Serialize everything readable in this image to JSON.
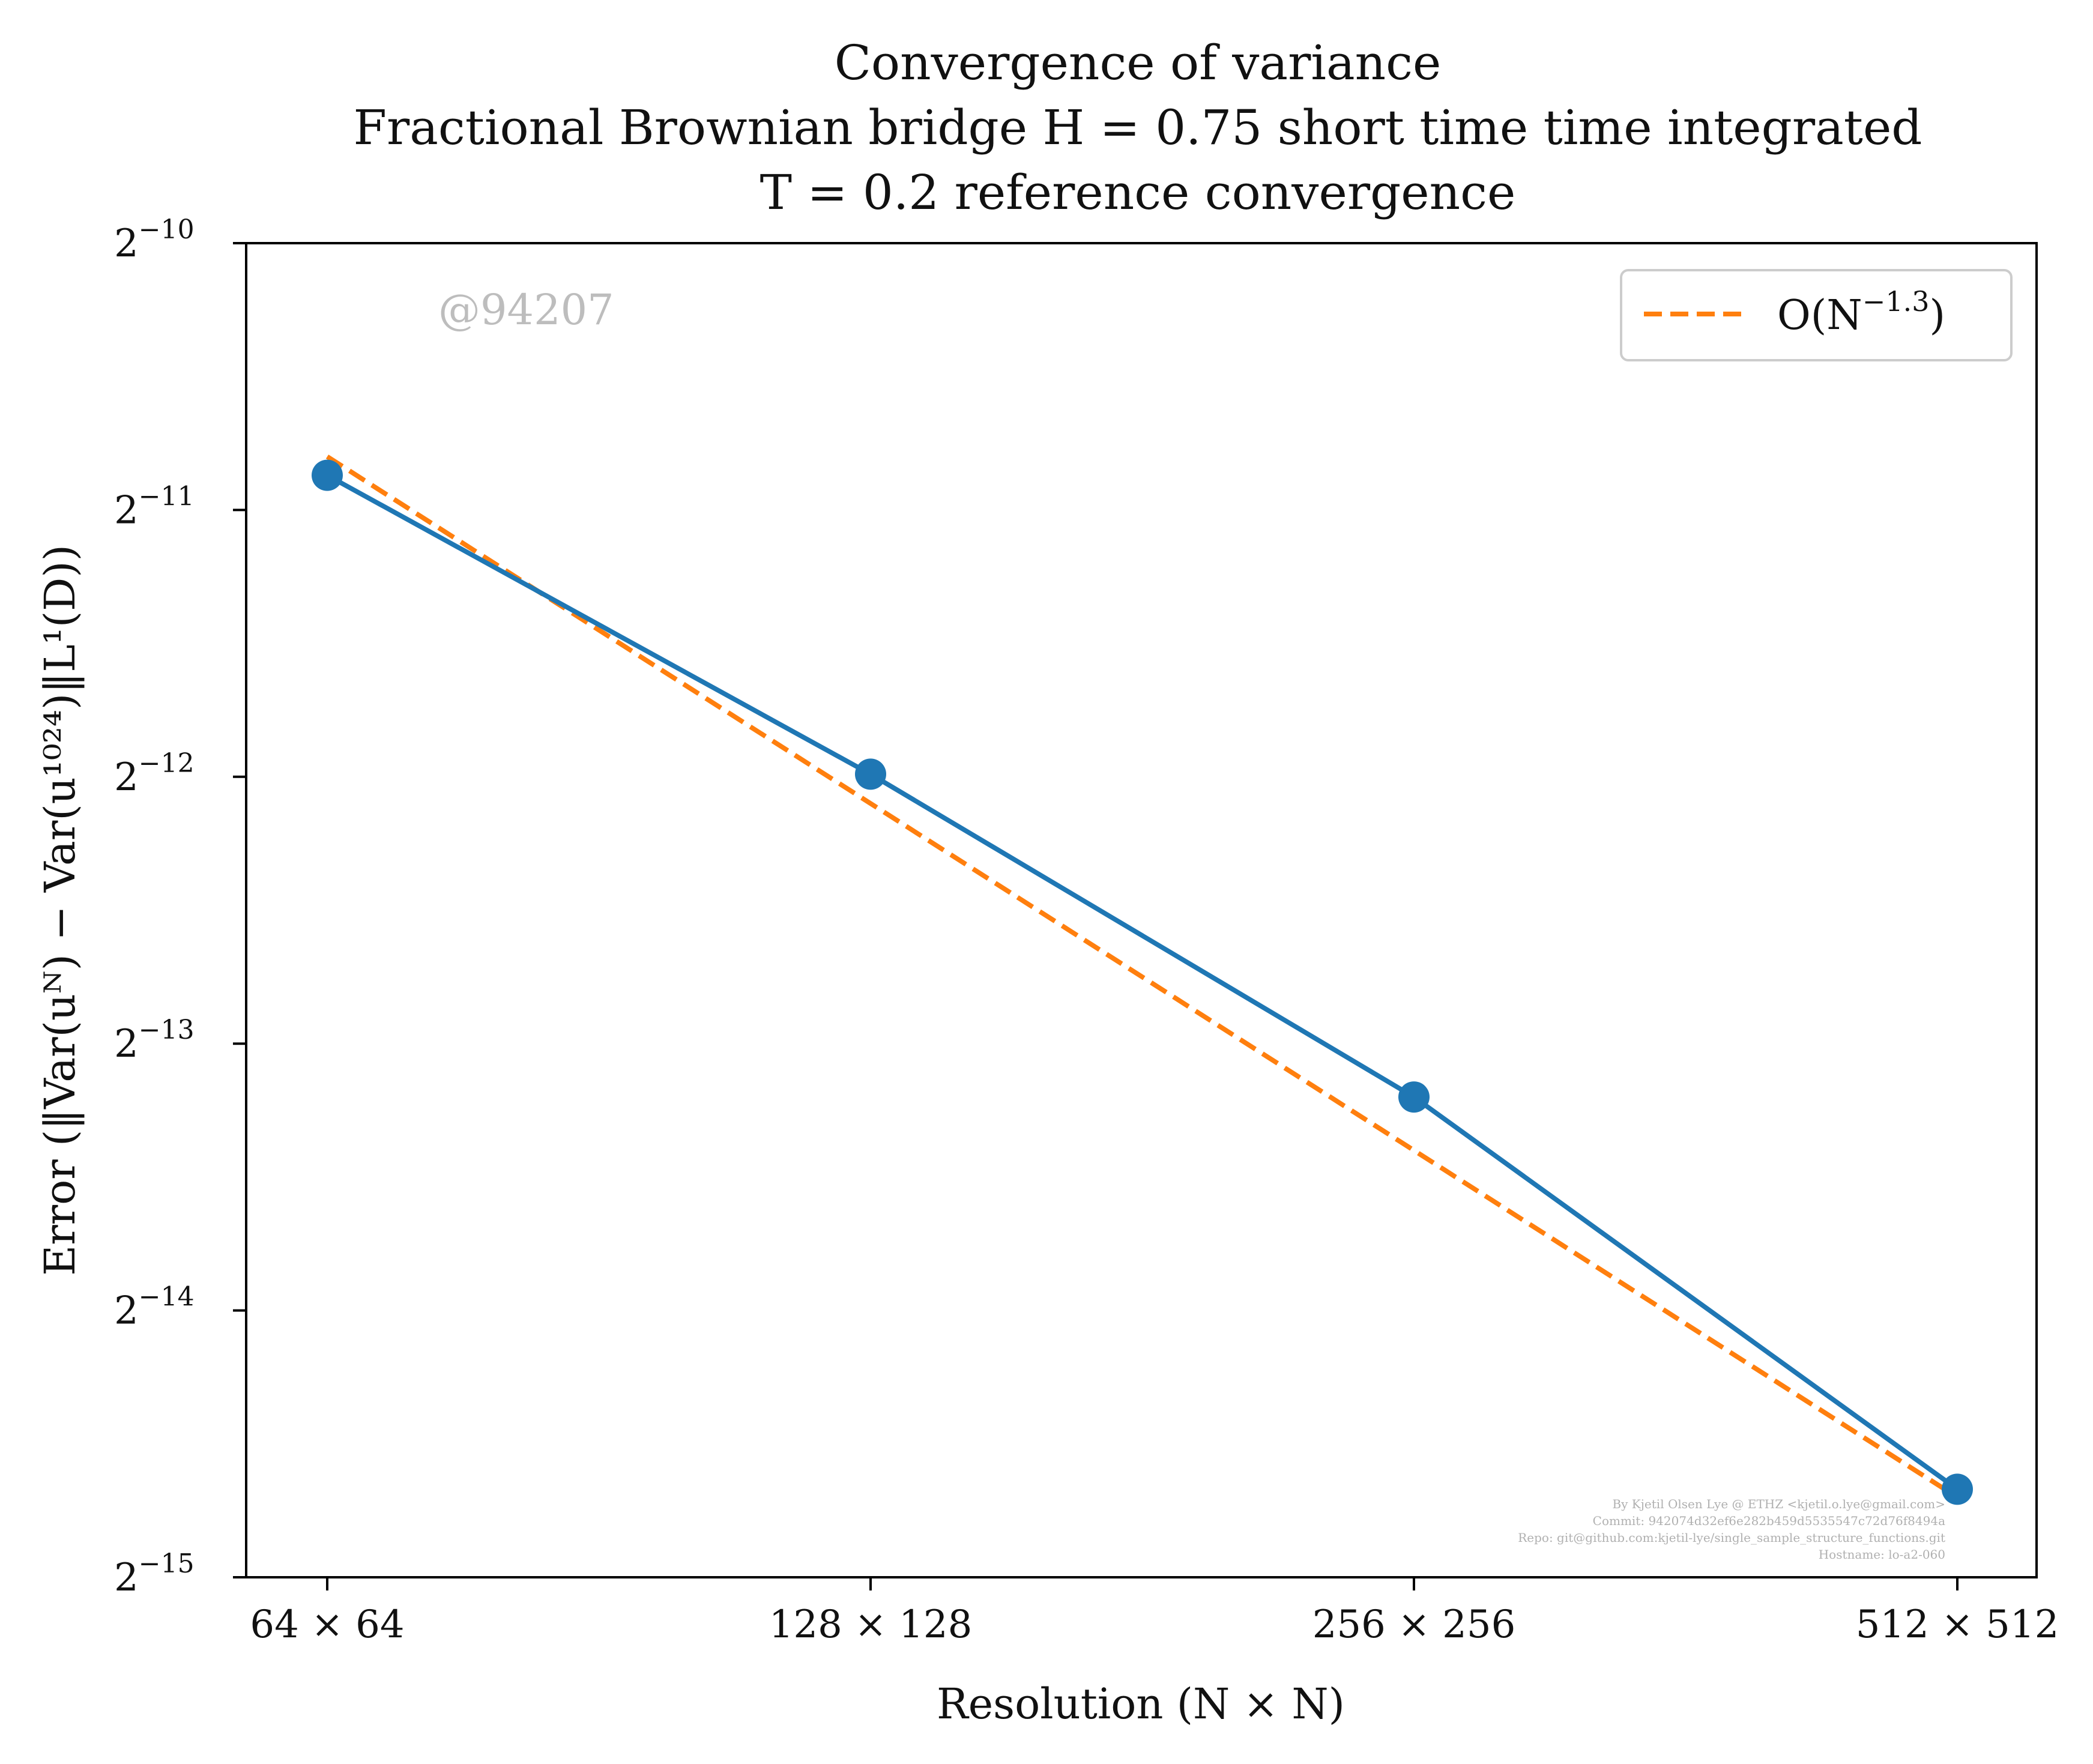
{
  "chart_data": {
    "type": "line",
    "title": [
      "Convergence of variance",
      "Fractional Brownian bridge H = 0.75 short time time integrated",
      "T = 0.2 reference convergence"
    ],
    "xlabel": "Resolution (N × N)",
    "ylabel": "Error (‖Var(uᴺ) − Var(u¹⁰²⁴)‖L¹(D))",
    "x_scale": "log2",
    "y_scale": "log2",
    "x": [
      64,
      128,
      256,
      512
    ],
    "x_tick_labels": [
      "64 × 64",
      "128 × 128",
      "256 × 256",
      "512 × 512"
    ],
    "y_ticks": [
      {
        "base": "2",
        "exp": "−10",
        "log2": -10
      },
      {
        "base": "2",
        "exp": "−11",
        "log2": -11
      },
      {
        "base": "2",
        "exp": "−12",
        "log2": -12
      },
      {
        "base": "2",
        "exp": "−13",
        "log2": -13
      },
      {
        "base": "2",
        "exp": "−14",
        "log2": -14
      },
      {
        "base": "2",
        "exp": "−15",
        "log2": -15
      }
    ],
    "ylim_log2": [
      -15,
      -10
    ],
    "series": [
      {
        "name": "",
        "color": "#1f77b4",
        "style": "solid-with-markers",
        "log2_values": [
          -10.87,
          -11.99,
          -13.2,
          -14.67
        ]
      },
      {
        "name": "O(N^−1.3)",
        "color": "#ff7f0e",
        "style": "dashed",
        "log2_values": [
          -10.8,
          -12.1,
          -13.4,
          -14.7
        ]
      }
    ],
    "legend": {
      "placement": "top-right",
      "label_main": "O(N",
      "label_sup": "−1.3",
      "label_end": ")"
    },
    "grid": false
  },
  "watermark": "@94207",
  "credits": [
    "By Kjetil Olsen Lye @ ETHZ <kjetil.o.lye@gmail.com>",
    "Commit: 942074d32ef6e282b459d5535547c72d76f8494a",
    "Repo: git@github.com:kjetil-lye/single_sample_structure_functions.git",
    "Hostname: lo-a2-060"
  ]
}
